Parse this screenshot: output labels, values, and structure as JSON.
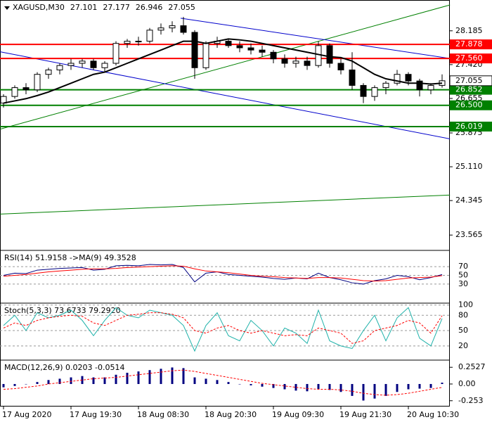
{
  "chart_data": [
    {
      "type": "candlestick",
      "title": "XAGUSD,M30",
      "header_values": [
        27.101,
        27.177,
        26.946,
        27.055
      ],
      "categories": [
        "17 Aug 2020",
        null,
        null,
        null,
        null,
        null,
        "17 Aug 19:30",
        null,
        null,
        null,
        null,
        null,
        "18 Aug 08:30",
        null,
        null,
        null,
        null,
        null,
        "18 Aug 20:30",
        null,
        null,
        null,
        null,
        null,
        "19 Aug 09:30",
        null,
        null,
        null,
        null,
        null,
        "19 Aug 21:30",
        null,
        null,
        null,
        null,
        null,
        "20 Aug 10:30",
        null,
        null,
        null
      ],
      "ohlc": {
        "open": [
          26.55,
          26.7,
          26.9,
          26.85,
          27.2,
          27.3,
          27.4,
          27.45,
          27.5,
          27.35,
          27.45,
          27.9,
          27.95,
          27.95,
          28.2,
          28.25,
          28.3,
          28.15,
          27.35,
          27.9,
          27.95,
          27.85,
          27.8,
          27.75,
          27.7,
          27.55,
          27.45,
          27.5,
          27.4,
          27.85,
          27.45,
          27.3,
          26.95,
          26.7,
          26.9,
          27.0,
          27.2,
          27.05,
          26.85,
          26.95
        ],
        "high": [
          26.75,
          26.95,
          27.0,
          27.25,
          27.35,
          27.45,
          27.55,
          27.55,
          27.55,
          27.5,
          27.95,
          28.0,
          28.05,
          28.25,
          28.35,
          28.4,
          28.5,
          28.2,
          27.95,
          28.05,
          28.0,
          27.95,
          27.9,
          27.85,
          27.75,
          27.65,
          27.6,
          27.6,
          27.95,
          27.9,
          27.55,
          27.7,
          27.0,
          26.95,
          27.05,
          27.3,
          27.25,
          27.1,
          27.0,
          27.2
        ],
        "low": [
          26.45,
          26.65,
          26.75,
          26.8,
          27.1,
          27.2,
          27.3,
          27.35,
          27.3,
          27.25,
          27.4,
          27.8,
          27.85,
          27.9,
          28.1,
          28.15,
          28.1,
          27.1,
          27.3,
          27.8,
          27.8,
          27.7,
          27.65,
          27.6,
          27.45,
          27.35,
          27.35,
          27.3,
          27.35,
          27.35,
          27.2,
          26.85,
          26.55,
          26.6,
          26.75,
          26.95,
          26.95,
          26.7,
          26.75,
          26.9
        ],
        "close": [
          26.7,
          26.9,
          26.85,
          27.2,
          27.3,
          27.4,
          27.45,
          27.5,
          27.35,
          27.45,
          27.9,
          27.95,
          27.95,
          28.2,
          28.25,
          28.3,
          28.15,
          27.35,
          27.9,
          27.95,
          27.85,
          27.8,
          27.75,
          27.7,
          27.55,
          27.45,
          27.5,
          27.4,
          27.85,
          27.45,
          27.3,
          26.95,
          26.7,
          26.9,
          27.0,
          27.2,
          27.05,
          26.85,
          26.95,
          27.055
        ]
      },
      "ma": {
        "color": "#000000",
        "values": [
          26.55,
          26.6,
          26.65,
          26.72,
          26.8,
          26.9,
          27.0,
          27.1,
          27.2,
          27.25,
          27.35,
          27.45,
          27.55,
          27.65,
          27.75,
          27.85,
          27.95,
          27.95,
          27.9,
          27.95,
          28.0,
          27.98,
          27.95,
          27.9,
          27.85,
          27.8,
          27.75,
          27.7,
          27.65,
          27.6,
          27.58,
          27.5,
          27.35,
          27.2,
          27.1,
          27.05,
          27.0,
          27.0,
          26.98,
          27.0
        ]
      },
      "ylim": [
        23.25,
        28.85
      ],
      "yticks": [
        {
          "value": 28.185,
          "label": "28.185"
        },
        {
          "value": 27.42,
          "label": "27.420"
        },
        {
          "value": 26.655,
          "label": "26.655"
        },
        {
          "value": 25.875,
          "label": "25.875"
        },
        {
          "value": 25.11,
          "label": "25.110"
        },
        {
          "value": 24.345,
          "label": "24.345"
        },
        {
          "value": 23.565,
          "label": "23.565"
        }
      ],
      "levels": [
        {
          "value": 27.878,
          "label": "27.878",
          "color": "#ff0000"
        },
        {
          "value": 27.56,
          "label": "27.560",
          "color": "#ff0000"
        },
        {
          "value": 26.852,
          "label": "26.852",
          "color": "#008000"
        },
        {
          "value": 26.5,
          "label": "26.500",
          "color": "#008000"
        },
        {
          "value": 26.019,
          "label": "26.019",
          "color": "#008000"
        }
      ],
      "last_price": 27.055,
      "trendlines": [
        {
          "x": [
            -0.3,
            39.7
          ],
          "y": [
            25.96,
            28.77
          ],
          "color": "#008000"
        },
        {
          "x": [
            15.75,
            39.7
          ],
          "y": [
            28.47,
            27.56
          ],
          "color": "#0000cc"
        },
        {
          "x": [
            -0.3,
            39.7
          ],
          "y": [
            27.71,
            25.74
          ],
          "color": "#0000cc"
        },
        {
          "x": [
            -0.3,
            39.7
          ],
          "y": [
            24.04,
            24.47
          ],
          "color": "#008000"
        }
      ]
    },
    {
      "type": "line",
      "title": "RSI(14) 51.9158 ->MA(9) 49.3528",
      "ylim": [
        -12,
        104
      ],
      "yticks": [
        30,
        50,
        70
      ],
      "grid": true,
      "series": [
        {
          "color": "#000080",
          "values": [
            50,
            55,
            54,
            62,
            64,
            66,
            67,
            68,
            62,
            64,
            72,
            73,
            72,
            75,
            74,
            75,
            68,
            35,
            55,
            58,
            52,
            50,
            48,
            46,
            43,
            41,
            44,
            42,
            55,
            45,
            40,
            33,
            30,
            38,
            42,
            50,
            47,
            40,
            45,
            51.9
          ]
        },
        {
          "color": "#ff0000",
          "values": [
            48,
            50,
            52,
            55,
            58,
            60,
            62,
            64,
            65,
            65,
            66,
            68,
            69,
            70,
            71,
            72,
            71,
            65,
            60,
            58,
            56,
            53,
            50,
            48,
            47,
            45,
            44,
            43,
            45,
            45,
            44,
            41,
            38,
            37,
            38,
            41,
            44,
            45,
            46,
            49.35
          ]
        }
      ]
    },
    {
      "type": "line",
      "title": "Stoch(5,3,3) 73.6733 79.2920",
      "ylim": [
        -5,
        101
      ],
      "yticks": [
        20,
        50,
        80,
        100
      ],
      "grid": true,
      "series": [
        {
          "color": "#20b2aa",
          "values": [
            60,
            80,
            50,
            85,
            75,
            80,
            90,
            70,
            40,
            70,
            95,
            80,
            75,
            90,
            85,
            80,
            60,
            10,
            60,
            85,
            40,
            30,
            70,
            50,
            20,
            55,
            45,
            25,
            90,
            30,
            20,
            15,
            50,
            80,
            30,
            75,
            95,
            35,
            20,
            73.7
          ]
        },
        {
          "color": "#ff0000",
          "dash": true,
          "values": [
            55,
            65,
            60,
            70,
            75,
            78,
            80,
            78,
            65,
            60,
            70,
            80,
            82,
            85,
            85,
            82,
            75,
            50,
            45,
            55,
            60,
            50,
            45,
            50,
            45,
            40,
            42,
            40,
            55,
            50,
            45,
            25,
            30,
            50,
            55,
            60,
            70,
            65,
            45,
            79.3
          ]
        }
      ]
    },
    {
      "type": "bar",
      "title": "MACD(12,26,9) 0.0203 -0.0514",
      "ylim": [
        -0.33,
        0.34
      ],
      "yticks": [
        0.2527,
        {
          "value": 0,
          "label": "0.00"
        },
        -0.253
      ],
      "values": [
        -0.05,
        -0.03,
        0,
        0.03,
        0.06,
        0.08,
        0.1,
        0.12,
        0.1,
        0.1,
        0.14,
        0.17,
        0.19,
        0.21,
        0.23,
        0.25,
        0.24,
        0.1,
        0.08,
        0.06,
        0.03,
        0,
        -0.02,
        -0.04,
        -0.06,
        -0.08,
        -0.1,
        -0.11,
        -0.08,
        -0.09,
        -0.12,
        -0.18,
        -0.25,
        -0.22,
        -0.18,
        -0.12,
        -0.08,
        -0.07,
        -0.06,
        0.0203
      ],
      "color": "#000080",
      "signal": {
        "color": "#ff0000",
        "values": [
          -0.08,
          -0.07,
          -0.05,
          -0.03,
          0,
          0.02,
          0.04,
          0.06,
          0.08,
          0.09,
          0.1,
          0.12,
          0.14,
          0.16,
          0.18,
          0.2,
          0.21,
          0.19,
          0.16,
          0.13,
          0.1,
          0.07,
          0.04,
          0.01,
          -0.01,
          -0.03,
          -0.05,
          -0.07,
          -0.08,
          -0.08,
          -0.09,
          -0.11,
          -0.14,
          -0.16,
          -0.17,
          -0.16,
          -0.14,
          -0.11,
          -0.08,
          -0.0514
        ]
      }
    }
  ]
}
